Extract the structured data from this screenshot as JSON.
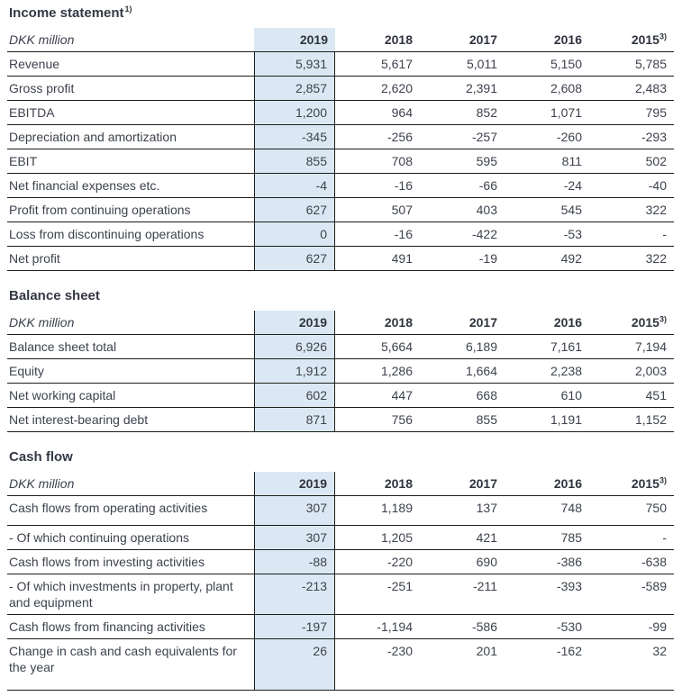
{
  "theme": {
    "highlight_bg": "#dbe8f4",
    "border_color": "#1d1d1b",
    "text_color": "#3d424d"
  },
  "sections": [
    {
      "id": "income-statement",
      "title": "Income statement",
      "title_sup": "1)",
      "unit_label": "DKK million",
      "columns": [
        {
          "label": "2019",
          "highlight": true
        },
        {
          "label": "2018"
        },
        {
          "label": "2017"
        },
        {
          "label": "2016"
        },
        {
          "label": "2015",
          "sup": "3)"
        }
      ],
      "rows": [
        {
          "label": "Revenue",
          "values": [
            "5,931",
            "5,617",
            "5,011",
            "5,150",
            "5,785"
          ]
        },
        {
          "label": "Gross profit",
          "values": [
            "2,857",
            "2,620",
            "2,391",
            "2,608",
            "2,483"
          ]
        },
        {
          "label": "EBITDA",
          "values": [
            "1,200",
            "964",
            "852",
            "1,071",
            "795"
          ]
        },
        {
          "label": "Depreciation and amortization",
          "values": [
            "-345",
            "-256",
            "-257",
            "-260",
            "-293"
          ]
        },
        {
          "label": "EBIT",
          "values": [
            "855",
            "708",
            "595",
            "811",
            "502"
          ]
        },
        {
          "label": "Net financial expenses etc.",
          "values": [
            "-4",
            "-16",
            "-66",
            "-24",
            "-40"
          ]
        },
        {
          "label": "Profit from continuing operations",
          "values": [
            "627",
            "507",
            "403",
            "545",
            "322"
          ]
        },
        {
          "label": "Loss from discontinuing operations",
          "values": [
            "0",
            "-16",
            "-422",
            "-53",
            "-"
          ]
        },
        {
          "label": "Net profit",
          "values": [
            "627",
            "491",
            "-19",
            "492",
            "322"
          ]
        }
      ]
    },
    {
      "id": "balance-sheet",
      "title": "Balance sheet",
      "unit_label": "DKK million",
      "columns": [
        {
          "label": "2019",
          "highlight": true
        },
        {
          "label": "2018"
        },
        {
          "label": "2017"
        },
        {
          "label": "2016"
        },
        {
          "label": "2015",
          "sup": "3)"
        }
      ],
      "rows": [
        {
          "label": "Balance sheet total",
          "values": [
            "6,926",
            "5,664",
            "6,189",
            "7,161",
            "7,194"
          ]
        },
        {
          "label": "Equity",
          "values": [
            "1,912",
            "1,286",
            "1,664",
            "2,238",
            "2,003"
          ]
        },
        {
          "label": "Net working capital",
          "values": [
            "602",
            "447",
            "668",
            "610",
            "451"
          ]
        },
        {
          "label": "Net interest-bearing debt",
          "values": [
            "871",
            "756",
            "855",
            "1,191",
            "1,152"
          ]
        }
      ]
    },
    {
      "id": "cash-flow",
      "title": "Cash flow",
      "unit_label": "DKK million",
      "columns": [
        {
          "label": "2019",
          "highlight": true
        },
        {
          "label": "2018"
        },
        {
          "label": "2017"
        },
        {
          "label": "2016"
        },
        {
          "label": "2015",
          "sup": "3)"
        }
      ],
      "rows": [
        {
          "label": "Cash flows from operating activities",
          "values": [
            "307",
            "1,189",
            "137",
            "748",
            "750"
          ]
        },
        {
          "label": "- Of which continuing operations",
          "values": [
            "307",
            "1,205",
            "421",
            "785",
            "-"
          ]
        },
        {
          "label": "Cash flows from investing activities",
          "values": [
            "-88",
            "-220",
            "690",
            "-386",
            "-638"
          ]
        },
        {
          "label": "- Of which investments in property, plant and equipment",
          "values": [
            "-213",
            "-251",
            "-211",
            "-393",
            "-589"
          ]
        },
        {
          "label": "Cash flows from financing activities",
          "values": [
            "-197",
            "-1,194",
            "-586",
            "-530",
            "-99"
          ]
        },
        {
          "label": "Change in cash and cash equivalents for the year",
          "values": [
            "26",
            "-230",
            "201",
            "-162",
            "32"
          ]
        }
      ]
    }
  ]
}
